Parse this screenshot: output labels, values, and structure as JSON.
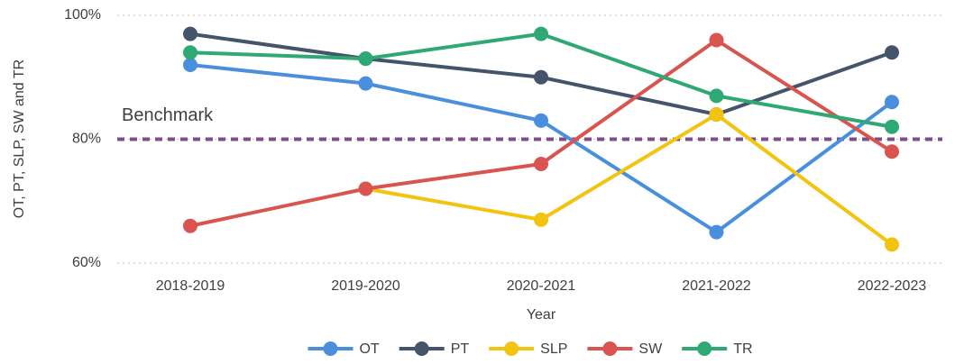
{
  "chart_data": {
    "type": "line",
    "xlabel": "Year",
    "ylabel": "OT, PT, SLP, SW and TR",
    "categories": [
      "2018-2019",
      "2019-2020",
      "2020-2021",
      "2021-2022",
      "2022-2023"
    ],
    "series": [
      {
        "name": "OT",
        "color": "#4a8fdd",
        "values": [
          92,
          89,
          83,
          65,
          86
        ]
      },
      {
        "name": "PT",
        "color": "#44546a",
        "values": [
          97,
          93,
          90,
          84,
          94
        ]
      },
      {
        "name": "SLP",
        "color": "#f2c40f",
        "values": [
          null,
          72,
          67,
          84,
          63
        ]
      },
      {
        "name": "SW",
        "color": "#d9534f",
        "values": [
          66,
          72,
          76,
          96,
          78
        ]
      },
      {
        "name": "TR",
        "color": "#2ea874",
        "values": [
          94,
          93,
          97,
          87,
          82
        ]
      }
    ],
    "ylim": [
      60,
      100
    ],
    "yticks": [
      {
        "value": 60,
        "label": "60%"
      },
      {
        "value": 80,
        "label": "80%"
      },
      {
        "value": 100,
        "label": "100%"
      }
    ],
    "grid": true,
    "legend": "bottom",
    "benchmark": {
      "label": "Benchmark",
      "value": 80,
      "color": "#7b4f8a"
    }
  }
}
